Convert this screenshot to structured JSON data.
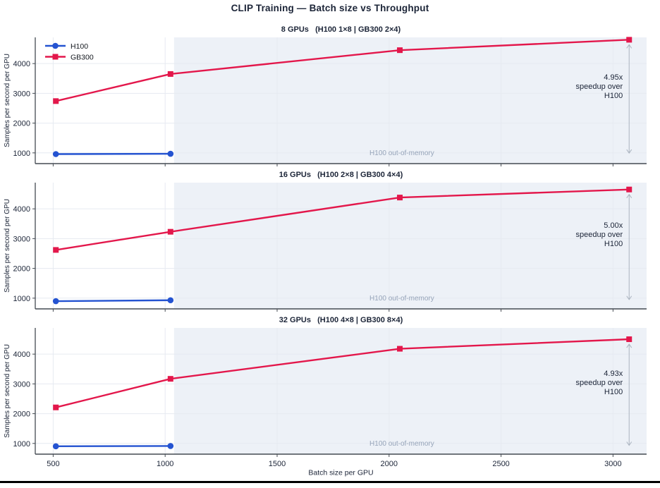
{
  "figure": {
    "title": "CLIP Training — Batch size vs Throughput"
  },
  "colors": {
    "h100": "#2453d1",
    "gb300": "#e3174b",
    "oom_shade": "#edf1f7",
    "grid": "#e6eaf1",
    "axis_text": "#1b2437",
    "spine": "#444a52",
    "oom_text": "#96a4b9",
    "arrow": "#aab3bf"
  },
  "legend": {
    "items": [
      {
        "label": "H100",
        "series": "h100",
        "marker": "circle"
      },
      {
        "label": "GB300",
        "series": "gb300",
        "marker": "square"
      }
    ]
  },
  "chart_data": {
    "type": "line",
    "xlabel": "Batch size per GPU",
    "ylabel": "Samples per second per GPU",
    "x_ticks": [
      500,
      1000,
      1500,
      2000,
      2500,
      3000
    ],
    "y_ticks": [
      1000,
      2000,
      3000,
      4000
    ],
    "xlim": [
      420,
      3150
    ],
    "ylim": [
      640,
      4880
    ],
    "oom_region_start_batch": 1024,
    "panels": [
      {
        "title": "8 GPUs   (H100 1×8 | GB300 2×4)",
        "series": [
          {
            "name": "H100",
            "color_key": "h100",
            "marker": "circle",
            "x": [
              512,
              1024
            ],
            "values": [
              960,
              970
            ]
          },
          {
            "name": "GB300",
            "color_key": "gb300",
            "marker": "square",
            "x": [
              512,
              1024,
              2048,
              3072
            ],
            "values": [
              2740,
              3650,
              4450,
              4800
            ]
          }
        ],
        "annotation": {
          "lines": [
            "4.95x",
            "speedup over",
            "H100"
          ]
        },
        "oom_label": "H100 out-of-memory"
      },
      {
        "title": "16 GPUs   (H100 2×8 | GB300 4×4)",
        "series": [
          {
            "name": "H100",
            "color_key": "h100",
            "marker": "circle",
            "x": [
              512,
              1024
            ],
            "values": [
              900,
              930
            ]
          },
          {
            "name": "GB300",
            "color_key": "gb300",
            "marker": "square",
            "x": [
              512,
              1024,
              2048,
              3072
            ],
            "values": [
              2620,
              3230,
              4380,
              4650
            ]
          }
        ],
        "annotation": {
          "lines": [
            "5.00x",
            "speedup over",
            "H100"
          ]
        },
        "oom_label": "H100 out-of-memory"
      },
      {
        "title": "32 GPUs   (H100 4×8 | GB300 8×4)",
        "series": [
          {
            "name": "H100",
            "color_key": "h100",
            "marker": "circle",
            "x": [
              512,
              1024
            ],
            "values": [
              905,
              913
            ]
          },
          {
            "name": "GB300",
            "color_key": "gb300",
            "marker": "square",
            "x": [
              512,
              1024,
              2048,
              3072
            ],
            "values": [
              2210,
              3170,
              4180,
              4500
            ]
          }
        ],
        "annotation": {
          "lines": [
            "4.93x",
            "speedup over",
            "H100"
          ]
        },
        "oom_label": "H100 out-of-memory"
      }
    ]
  }
}
